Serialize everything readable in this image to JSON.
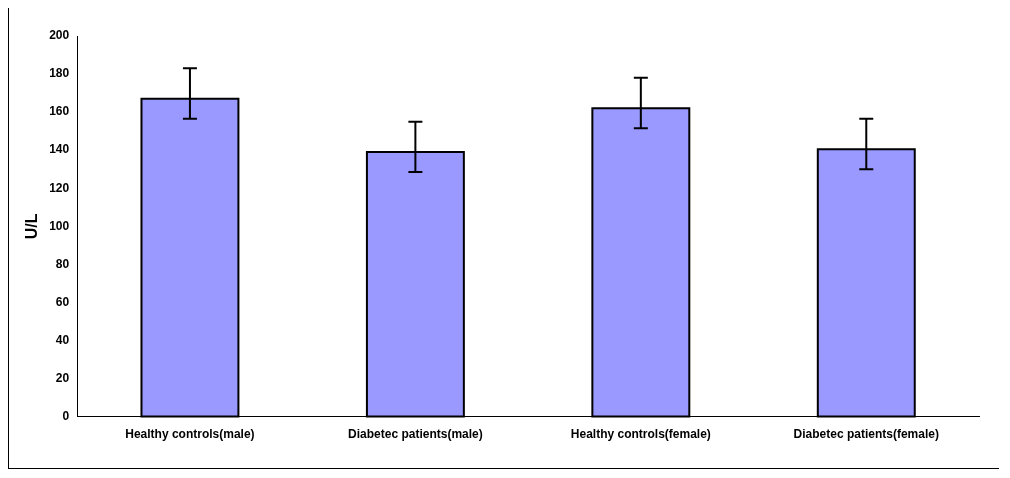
{
  "chart_data": {
    "type": "bar",
    "ylabel": "U/L",
    "categories": [
      "Healthy controls(male)",
      "Diabetec patients(male)",
      "Healthy controls(female)",
      "Diabetec patients(female)"
    ],
    "values": [
      167,
      139,
      162,
      140.5
    ],
    "errors": [
      [
        156.5,
        183
      ],
      [
        128.5,
        155
      ],
      [
        151.5,
        178
      ],
      [
        130,
        156.5
      ]
    ],
    "color": "#9999ff",
    "ylim": [
      0,
      200
    ],
    "yticks": [
      0,
      20,
      40,
      60,
      80,
      100,
      120,
      140,
      160,
      180,
      200
    ],
    "grid": false,
    "legend": false
  }
}
